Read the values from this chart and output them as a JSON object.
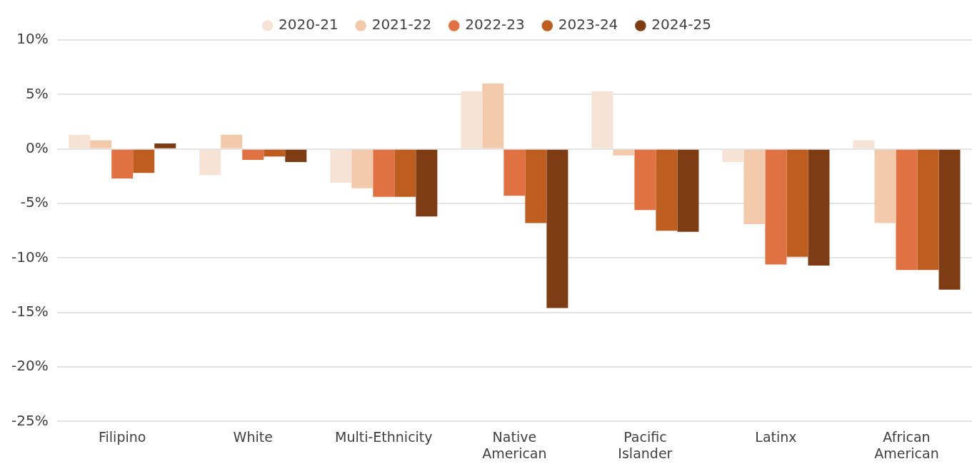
{
  "chart_data": {
    "type": "bar",
    "categories": [
      "Filipino",
      "White",
      "Multi-Ethnicity",
      "Native American",
      "Pacific Islander",
      "Latinx",
      "African American"
    ],
    "series": [
      {
        "name": "2020-21",
        "color": "#f7e3d5",
        "values": [
          1.3,
          -2.4,
          -3.1,
          5.3,
          5.3,
          -1.2,
          0.8
        ]
      },
      {
        "name": "2021-22",
        "color": "#f3c9ab",
        "values": [
          0.8,
          1.3,
          -3.6,
          6.0,
          -0.6,
          -6.9,
          -6.8
        ]
      },
      {
        "name": "2022-23",
        "color": "#e07142",
        "values": [
          -2.7,
          -1.0,
          -4.4,
          -4.3,
          -5.6,
          -10.6,
          -11.1
        ]
      },
      {
        "name": "2023-24",
        "color": "#bd5e20",
        "values": [
          -2.2,
          -0.7,
          -4.4,
          -6.8,
          -7.5,
          -9.9,
          -11.1
        ]
      },
      {
        "name": "2024-25",
        "color": "#7e3c15",
        "values": [
          0.5,
          -1.2,
          -6.2,
          -14.6,
          -7.6,
          -10.7,
          -12.9
        ]
      }
    ],
    "ylim": [
      -25,
      10
    ],
    "yticks": [
      {
        "value": -25,
        "label": "-25%"
      },
      {
        "value": -20,
        "label": "-20%"
      },
      {
        "value": -15,
        "label": "-15%"
      },
      {
        "value": -10,
        "label": "-10%"
      },
      {
        "value": -5,
        "label": "-5%"
      },
      {
        "value": 0,
        "label": "0%"
      },
      {
        "value": 5,
        "label": "5%"
      },
      {
        "value": 10,
        "label": "10%"
      }
    ],
    "grid": "y",
    "legend": "top"
  }
}
